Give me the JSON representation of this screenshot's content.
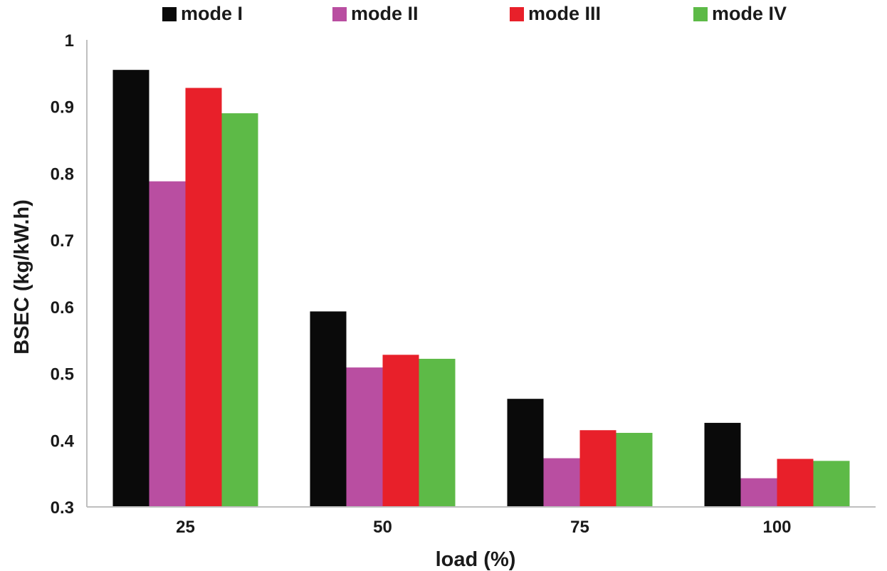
{
  "chart_data": {
    "type": "bar",
    "categories": [
      "25",
      "50",
      "75",
      "100"
    ],
    "series": [
      {
        "name": "mode I",
        "color": "#0a0a0a",
        "values": [
          0.955,
          0.593,
          0.462,
          0.426
        ]
      },
      {
        "name": "mode II",
        "color": "#b94ea1",
        "values": [
          0.788,
          0.509,
          0.373,
          0.343
        ]
      },
      {
        "name": "mode III",
        "color": "#e8202a",
        "values": [
          0.928,
          0.528,
          0.415,
          0.372
        ]
      },
      {
        "name": "mode IV",
        "color": "#5dba47",
        "values": [
          0.89,
          0.522,
          0.411,
          0.369
        ]
      }
    ],
    "xlabel": "load (%)",
    "ylabel": "BSEC (kg/kW.h)",
    "ylim": [
      0.3,
      1
    ],
    "yticks": [
      "0.3",
      "0.4",
      "0.5",
      "0.6",
      "0.7",
      "0.8",
      "0.9",
      "1"
    ],
    "grid": false,
    "legend_position": "top"
  }
}
